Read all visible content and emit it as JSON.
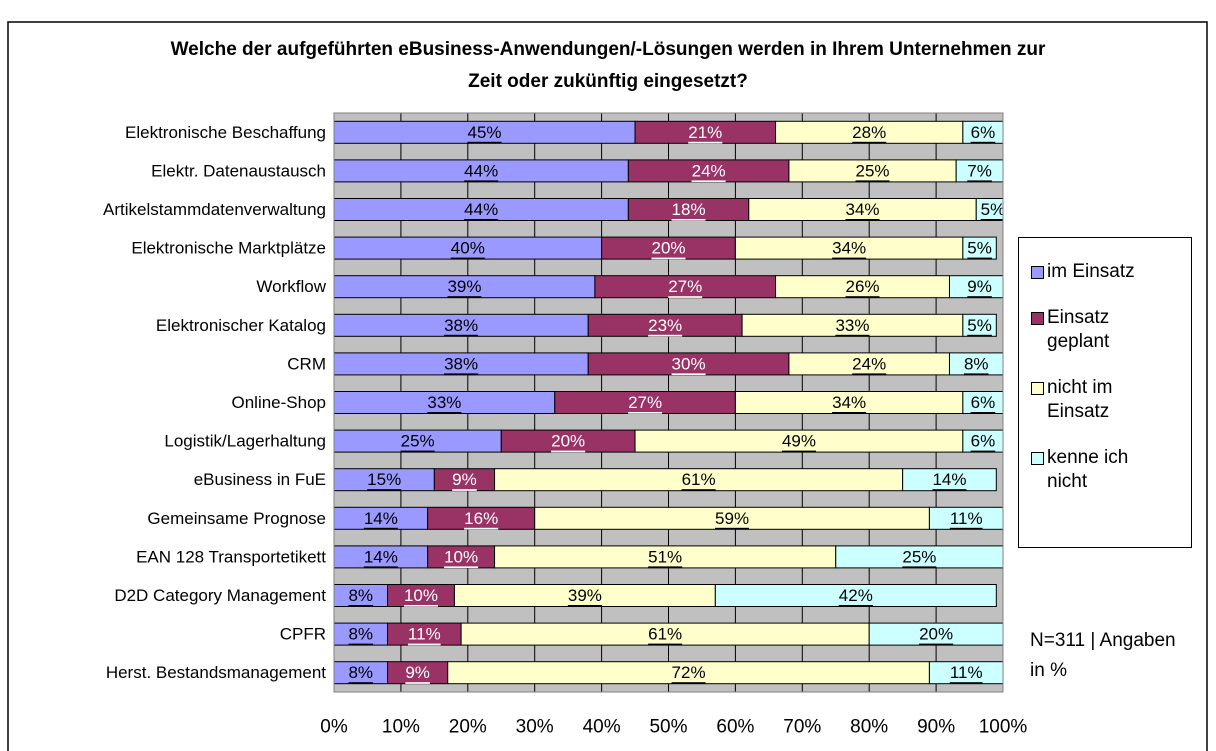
{
  "chart_data": {
    "type": "stacked_barh",
    "title": "Welche der aufgeführten eBusiness-Anwendungen/-Lösungen werden in Ihrem Unternehmen zur Zeit oder zukünftig eingesetzt?",
    "annotation": "N=311 | Angaben in %",
    "categories": [
      "Elektronische Beschaffung",
      "Elektr. Datenaustausch",
      "Artikelstammdatenverwaltung",
      "Elektronische Marktplätze",
      "Workflow",
      "Elektronischer Katalog",
      "CRM",
      "Online-Shop",
      "Logistik/Lagerhaltung",
      "eBusiness in FuE",
      "Gemeinsame Prognose",
      "EAN 128 Transportetikett",
      "D2D Category Management",
      "CPFR",
      "Herst. Bestandsmanagement"
    ],
    "series": [
      {
        "name": "im Einsatz",
        "color": "#9999ff",
        "values": [
          45,
          44,
          44,
          40,
          39,
          38,
          38,
          33,
          25,
          15,
          14,
          14,
          8,
          8,
          8
        ],
        "value_labels": [
          "45%",
          "44%",
          "44%",
          "40%",
          "39%",
          "38%",
          "38%",
          "33%",
          "25%",
          "15%",
          "14%",
          "14%",
          "8%",
          "8%",
          "8%"
        ]
      },
      {
        "name": "Einsatz geplant",
        "color": "#993366",
        "values": [
          21,
          24,
          18,
          20,
          27,
          23,
          30,
          27,
          20,
          9,
          16,
          10,
          10,
          11,
          9
        ],
        "value_labels": [
          "21%",
          "24%",
          "18%",
          "20%",
          "27%",
          "23%",
          "30%",
          "27%",
          "20%",
          "9%",
          "16%",
          "10%",
          "10%",
          "11%",
          "9%"
        ]
      },
      {
        "name": "nicht im Einsatz",
        "color": "#ffffcc",
        "values": [
          28,
          25,
          34,
          34,
          26,
          33,
          24,
          34,
          49,
          61,
          59,
          51,
          39,
          61,
          72
        ],
        "value_labels": [
          "28%",
          "25%",
          "34%",
          "34%",
          "26%",
          "33%",
          "24%",
          "34%",
          "49%",
          "61%",
          "59%",
          "51%",
          "39%",
          "61%",
          "72%"
        ]
      },
      {
        "name": "kenne ich nicht",
        "color": "#ccffff",
        "values": [
          6,
          7,
          5,
          5,
          9,
          5,
          8,
          6,
          6,
          14,
          11,
          25,
          42,
          20,
          11
        ],
        "value_labels": [
          "6%",
          "7%",
          "5%",
          "5%",
          "9%",
          "5%",
          "8%",
          "6%",
          "6%",
          "14%",
          "11%",
          "25%",
          "42%",
          "20%",
          "11%"
        ]
      }
    ],
    "xlim": [
      0,
      100
    ],
    "xticks": [
      {
        "value": 0,
        "label": "0%"
      },
      {
        "value": 10,
        "label": "10%"
      },
      {
        "value": 20,
        "label": "20%"
      },
      {
        "value": 30,
        "label": "30%"
      },
      {
        "value": 40,
        "label": "40%"
      },
      {
        "value": 50,
        "label": "50%"
      },
      {
        "value": 60,
        "label": "60%"
      },
      {
        "value": 70,
        "label": "70%"
      },
      {
        "value": 80,
        "label": "80%"
      },
      {
        "value": 90,
        "label": "90%"
      },
      {
        "value": 100,
        "label": "100%"
      }
    ],
    "grid": true,
    "legend": "right",
    "plot_background": "#c0c0c0"
  }
}
